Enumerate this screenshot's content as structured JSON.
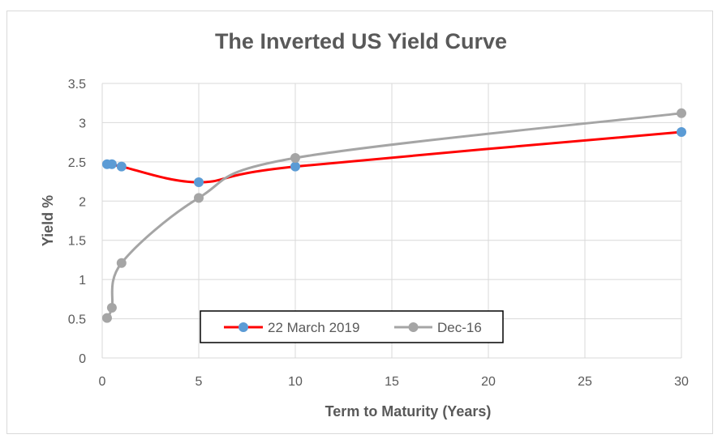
{
  "chart_data": {
    "type": "line",
    "title": "The Inverted US Yield Curve",
    "xlabel": "Term to Maturity (Years)",
    "ylabel": "Yield %",
    "xlim": [
      0,
      30
    ],
    "ylim": [
      0,
      3.5
    ],
    "x_ticks": [
      "0",
      "5",
      "10",
      "15",
      "20",
      "25",
      "30"
    ],
    "y_ticks": [
      "0",
      "0.5",
      "1",
      "1.5",
      "2",
      "2.5",
      "3",
      "3.5"
    ],
    "grid": true,
    "legend_position": "bottom-left inside plot",
    "series": [
      {
        "name": "22 March 2019",
        "line_color": "#ff0000",
        "marker_color": "#5b9bd5",
        "points": [
          {
            "x": 0.25,
            "y": 2.47
          },
          {
            "x": 0.5,
            "y": 2.47
          },
          {
            "x": 1,
            "y": 2.44
          },
          {
            "x": 5,
            "y": 2.24
          },
          {
            "x": 10,
            "y": 2.44
          },
          {
            "x": 30,
            "y": 2.88
          }
        ]
      },
      {
        "name": "Dec-16",
        "line_color": "#a5a5a5",
        "marker_color": "#a5a5a5",
        "points": [
          {
            "x": 0.25,
            "y": 0.51
          },
          {
            "x": 0.5,
            "y": 0.64
          },
          {
            "x": 1,
            "y": 1.21
          },
          {
            "x": 5,
            "y": 2.04
          },
          {
            "x": 10,
            "y": 2.55
          },
          {
            "x": 30,
            "y": 3.12
          }
        ]
      }
    ]
  }
}
